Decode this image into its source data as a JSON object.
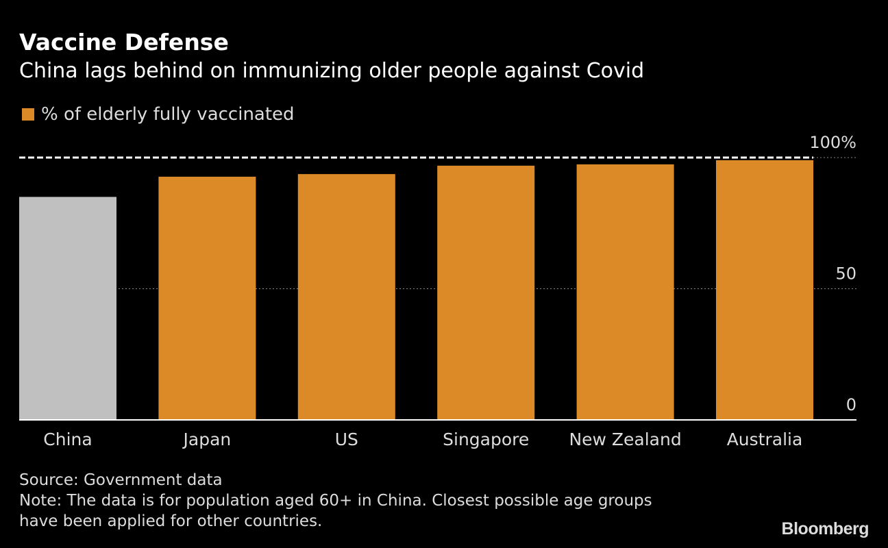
{
  "title": "Vaccine Defense",
  "subtitle": "China lags behind on immunizing older people against Covid",
  "source": "Source: Government data",
  "note_line1": "Note: The data is for population aged 60+ in China. Closest possible age groups",
  "note_line2": "have been applied for other countries.",
  "logo": "Bloomberg",
  "chart_data": {
    "type": "bar",
    "legend": [
      {
        "name": "% of elderly fully vaccinated",
        "color": "#dc8a27"
      }
    ],
    "legend_placement": "top-left",
    "categories": [
      "China",
      "Japan",
      "US",
      "Singapore",
      "New Zealand",
      "Australia"
    ],
    "series": [
      {
        "name": "% of elderly fully vaccinated",
        "values": [
          85,
          92.7,
          93.7,
          96.9,
          97.4,
          99
        ]
      }
    ],
    "colors": [
      "#c0c0c0",
      "#dc8a27",
      "#dc8a27",
      "#dc8a27",
      "#dc8a27",
      "#dc8a27"
    ],
    "ylim": [
      0,
      100
    ],
    "yticks": [
      {
        "value": 0,
        "label": "0"
      },
      {
        "value": 50,
        "label": "50"
      },
      {
        "value": 100,
        "label": "100%"
      }
    ],
    "reference_line": 100,
    "grid": true,
    "axis_side": "right"
  }
}
